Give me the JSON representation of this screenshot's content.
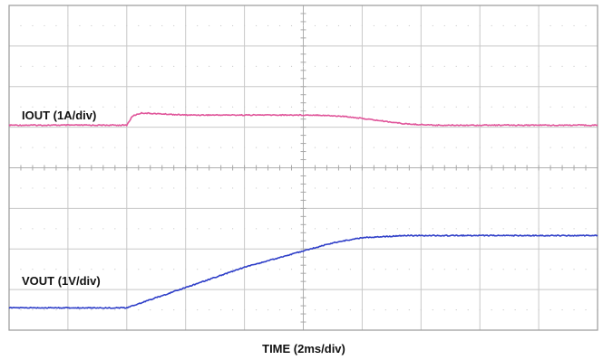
{
  "chart_data": {
    "type": "line",
    "title": "",
    "xlabel": "TIME (2ms/div)",
    "ylabel": "",
    "x_unit": "ms",
    "x_divisions": 10,
    "y_divisions": 8,
    "x_range_ms": [
      0,
      20
    ],
    "grid": true,
    "series": [
      {
        "name": "IOUT (1A/div)",
        "color": "#e0559a",
        "unit": "div",
        "x": [
          0,
          4.0,
          4.2,
          4.5,
          6,
          8,
          10.5,
          11.5,
          13.5,
          14.5,
          20
        ],
        "y": [
          1.05,
          1.05,
          1.28,
          1.35,
          1.3,
          1.3,
          1.3,
          1.26,
          1.08,
          1.05,
          1.05
        ]
      },
      {
        "name": "VOUT (1V/div)",
        "color": "#2f3fc8",
        "unit": "div",
        "x": [
          0,
          4.0,
          6,
          8,
          10,
          11,
          12,
          13.5,
          20
        ],
        "y": [
          -3.45,
          -3.45,
          -2.95,
          -2.45,
          -2.05,
          -1.85,
          -1.72,
          -1.67,
          -1.67
        ]
      }
    ]
  }
}
